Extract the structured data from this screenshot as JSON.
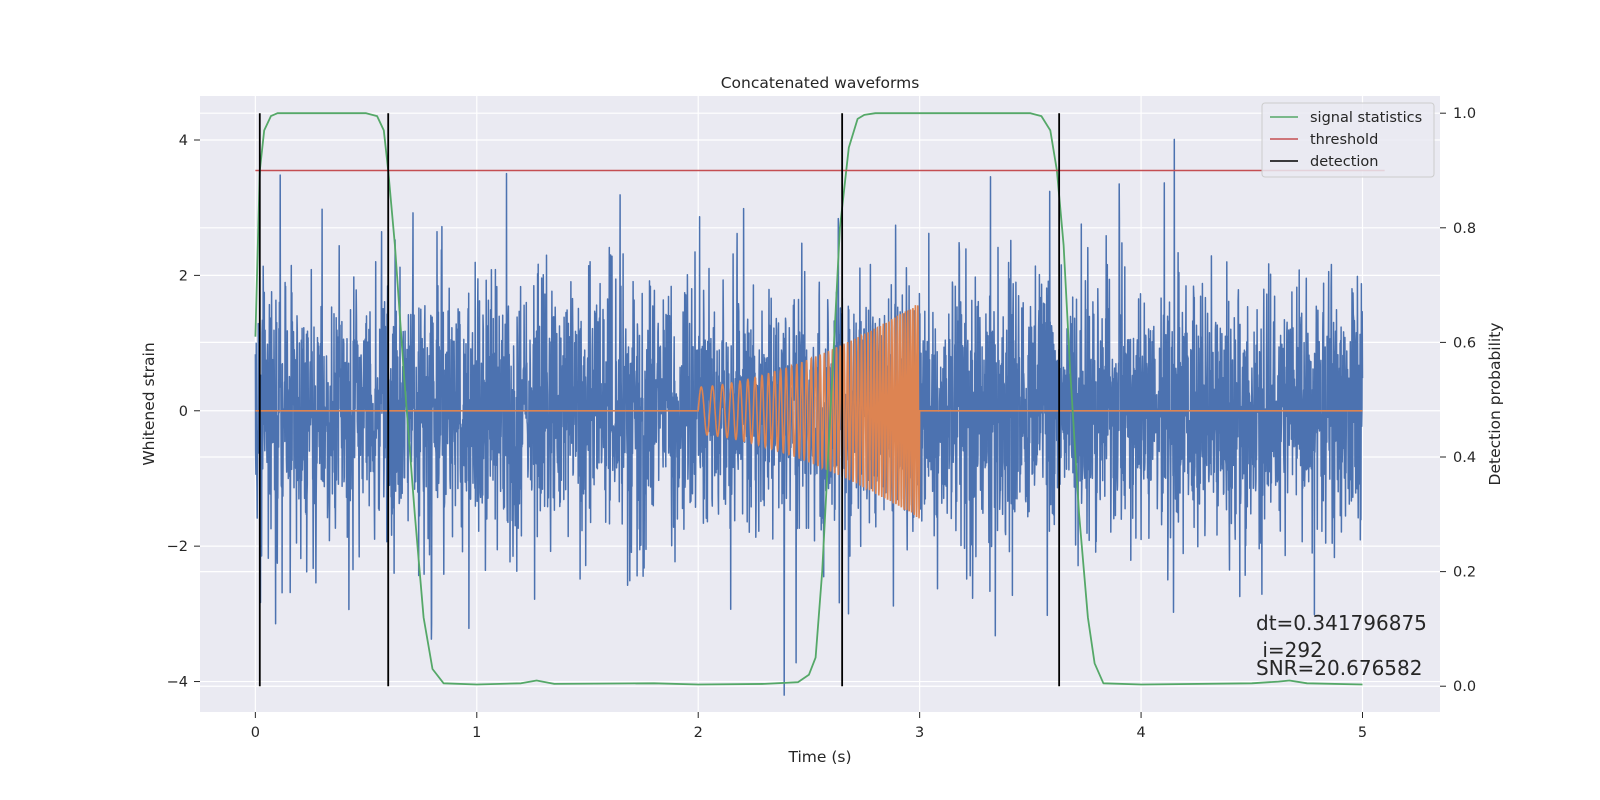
{
  "chart_data": {
    "type": "line",
    "title": "Concatenated waveforms",
    "xlabel": "Time (s)",
    "ylabel": "Whitened strain",
    "y2label": "Detection probability",
    "xlim": [
      -0.25,
      5.35
    ],
    "ylim": [
      -4.45,
      4.65
    ],
    "y2lim": [
      -0.045,
      1.03
    ],
    "x_ticks": [
      "0",
      "1",
      "2",
      "3",
      "4",
      "5"
    ],
    "y_ticks": [
      "−4",
      "−2",
      "0",
      "2",
      "4"
    ],
    "y2_ticks": [
      "0.0",
      "0.2",
      "0.4",
      "0.6",
      "0.8",
      "1.0"
    ],
    "grid": true,
    "legend_position": "top-right",
    "legend": [
      "signal statistics",
      "threshold",
      "detection"
    ],
    "colors": {
      "strain": "#4c72b0",
      "waveform": "#dd8452",
      "signal_statistics": "#55a868",
      "threshold": "#c44e52",
      "detection": "#000000",
      "background": "#eaeaf2",
      "grid": "#ffffff"
    },
    "strain_noise": {
      "x_range": [
        0,
        5
      ],
      "samples": 4096,
      "min": -4.2,
      "max": 4.2,
      "typical_band": [
        -0.85,
        0.85
      ]
    },
    "injected_waveform": {
      "start": 2.0,
      "end": 3.0,
      "amplitude_start": 0.35,
      "amplitude_end": 1.6
    },
    "series": [
      {
        "name": "signal statistics",
        "axis": "right",
        "x": [
          0,
          0.02,
          0.04,
          0.07,
          0.1,
          0.2,
          0.5,
          0.55,
          0.58,
          0.6,
          0.63,
          0.67,
          0.72,
          0.76,
          0.8,
          0.85,
          1.0,
          1.2,
          1.27,
          1.35,
          1.8,
          2.0,
          2.3,
          2.45,
          2.5,
          2.53,
          2.56,
          2.6,
          2.64,
          2.68,
          2.72,
          2.75,
          2.8,
          3.0,
          3.5,
          3.55,
          3.59,
          3.62,
          3.65,
          3.68,
          3.72,
          3.76,
          3.79,
          3.83,
          4.0,
          4.5,
          4.62,
          4.67,
          4.75,
          5.0
        ],
        "y": [
          0.61,
          0.9,
          0.97,
          0.995,
          1.0,
          1.0,
          1.0,
          0.995,
          0.97,
          0.9,
          0.77,
          0.55,
          0.3,
          0.12,
          0.03,
          0.005,
          0.003,
          0.005,
          0.01,
          0.004,
          0.005,
          0.003,
          0.004,
          0.007,
          0.02,
          0.05,
          0.2,
          0.5,
          0.8,
          0.94,
          0.99,
          0.997,
          1.0,
          1.0,
          1.0,
          0.995,
          0.97,
          0.9,
          0.77,
          0.55,
          0.3,
          0.12,
          0.04,
          0.005,
          0.003,
          0.005,
          0.008,
          0.01,
          0.005,
          0.003
        ]
      },
      {
        "name": "threshold",
        "axis": "right",
        "x": [
          0,
          5.1
        ],
        "y": [
          0.9,
          0.9
        ]
      }
    ],
    "detections": [
      0.02,
      0.6,
      2.65,
      3.63
    ],
    "annotations": [
      "dt=0.341796875",
      " i=292",
      "SNR=20.676582"
    ]
  }
}
